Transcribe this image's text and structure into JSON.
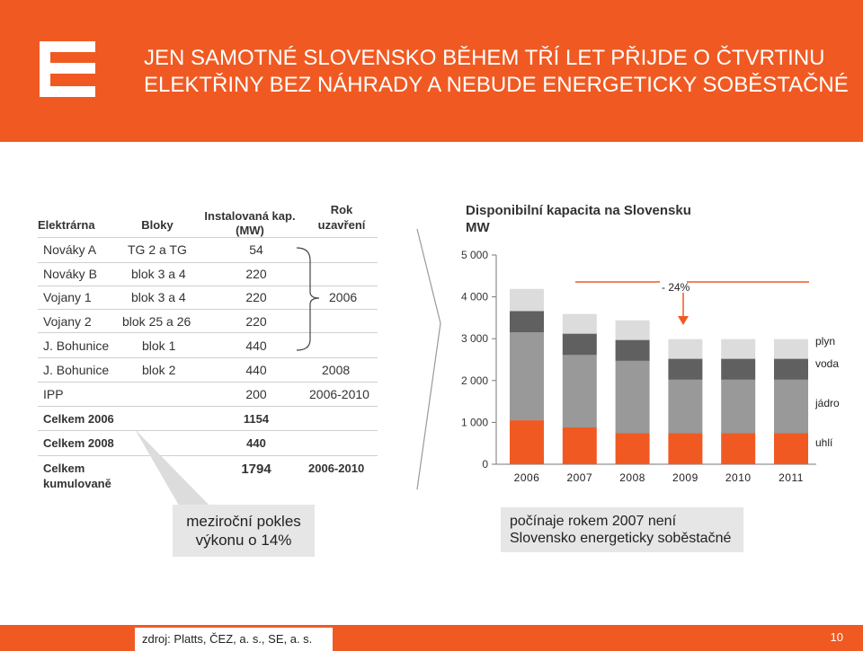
{
  "header": {
    "title_line1": "JEN SAMOTNÉ SLOVENSKO BĚHEM TŘÍ LET PŘIJDE O ČTVRTINU",
    "title_line2": "ELEKTŘINY BEZ NÁHRADY A NEBUDE ENERGETICKY SOBĚSTAČNÉ",
    "brand_color": "#f05a22"
  },
  "table": {
    "headers": {
      "plant": "Elektrárna",
      "units": "Bloky",
      "capacity_1": "Instalovaná kap.",
      "capacity_2": "(MW)",
      "closure_1": "Rok",
      "closure_2": "uzavření"
    },
    "rows": [
      {
        "plant": "Nováky A",
        "units": "TG 2 a TG",
        "mw": "54",
        "year": ""
      },
      {
        "plant": "Nováky B",
        "units": "blok 3 a 4",
        "mw": "220",
        "year": ""
      },
      {
        "plant": "Vojany 1",
        "units": "blok 3 a 4",
        "mw": "220",
        "year": "2006"
      },
      {
        "plant": "Vojany 2",
        "units": "blok 25 a 26",
        "mw": "220",
        "year": ""
      },
      {
        "plant": "J. Bohunice",
        "units": "blok 1",
        "mw": "440",
        "year": ""
      },
      {
        "plant": "J. Bohunice",
        "units": "blok 2",
        "mw": "440",
        "year": "2008"
      },
      {
        "plant": "IPP",
        "units": "",
        "mw": "200",
        "year": "2006-2010"
      }
    ],
    "totals": [
      {
        "label": "Celkem 2006",
        "mw": "1154",
        "year": ""
      },
      {
        "label": "Celkem 2008",
        "mw": "440",
        "year": ""
      },
      {
        "label_1": "Celkem",
        "label_2": "kumulovaně",
        "mw": "1794",
        "year": "2006-2010"
      }
    ]
  },
  "callouts": {
    "left_1": "meziroční pokles",
    "left_2": "výkonu o 14%",
    "right_1": "počínaje rokem 2007 není",
    "right_2": "Slovensko energeticky soběstačné"
  },
  "chart_data": {
    "type": "bar",
    "stacked": true,
    "title": "Disponibilní kapacita na Slovensku",
    "ylabel": "MW",
    "categories": [
      "2006",
      "2007",
      "2008",
      "2009",
      "2010",
      "2011"
    ],
    "ylim": [
      0,
      5000
    ],
    "yticks": [
      "0",
      "1 000",
      "2 000",
      "3 000",
      "4 000",
      "5 000"
    ],
    "series": [
      {
        "name": "uhlí",
        "color": "#f05a22",
        "values": [
          1050,
          880,
          740,
          740,
          740,
          740
        ]
      },
      {
        "name": "jádro",
        "color": "#999999",
        "values": [
          2100,
          1730,
          1730,
          1280,
          1280,
          1280
        ]
      },
      {
        "name": "voda",
        "color": "#606060",
        "values": [
          510,
          510,
          500,
          500,
          500,
          500
        ]
      },
      {
        "name": "plyn",
        "color": "#dcdcdc",
        "values": [
          530,
          470,
          470,
          470,
          470,
          470
        ]
      }
    ],
    "annotation": "- 24%",
    "grid": false,
    "legend": "right"
  },
  "footer": {
    "source": "zdroj: Platts, ČEZ, a. s., SE, a. s.",
    "page": "10"
  }
}
